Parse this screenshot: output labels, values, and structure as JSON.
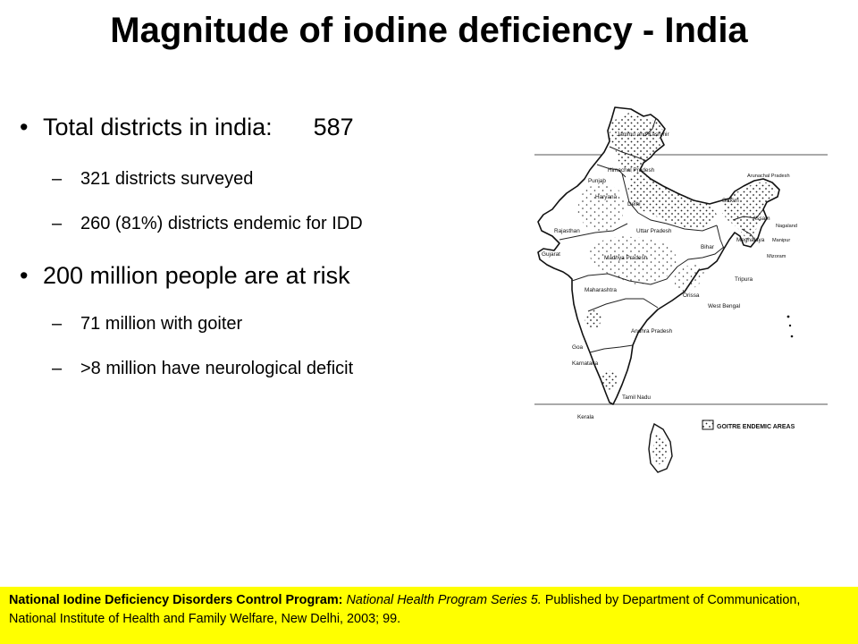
{
  "slide": {
    "title": "Magnitude of iodine deficiency - India",
    "bullets": [
      {
        "text": "Total districts in india:",
        "value": "587",
        "subs": [
          "321 districts surveyed",
          "260 (81%) districts endemic for IDD"
        ]
      },
      {
        "text": "200 million people are at risk",
        "subs": [
          "71 million with goiter",
          ">8 million have neurological deficit"
        ]
      }
    ],
    "bullet_glyph": "•",
    "dash_glyph": "–"
  },
  "map": {
    "labels": {
      "jammu_kashmir": "Jammu and Kashmir",
      "himachal": "Himachal Pradesh",
      "punjab": "Punjab",
      "haryana": "Haryana",
      "delhi": "Delhi",
      "rajasthan": "Rajasthan",
      "uttar_pradesh": "Uttar Pradesh",
      "sikkim": "Sikkim",
      "arunachal": "Arunachal Pradesh",
      "assam": "Assam",
      "nagaland": "Nagaland",
      "bihar": "Bihar",
      "meghalaya": "Meghalaya",
      "manipur": "Manipur",
      "mizoram": "Mizoram",
      "tripura": "Tripura",
      "gujarat": "Gujarat",
      "madhya_pradesh": "Madhya Pradesh",
      "maharashtra": "Maharashtra",
      "orissa": "Orissa",
      "west_bengal": "West Bengal",
      "andhra_pradesh": "Andhra Pradesh",
      "goa": "Goa",
      "karnataka": "Karnataka",
      "tamil_nadu": "Tamil Nadu",
      "kerala": "Kerala"
    },
    "legend": "GOITRE ENDEMIC AREAS"
  },
  "footer": {
    "bold": "National Iodine Deficiency Disorders Control Program:",
    "italic": "National Health Program Series 5.",
    "rest": "Published by Department of Communication, National Institute of Health and Family Welfare, New Delhi, 2003; 99."
  }
}
